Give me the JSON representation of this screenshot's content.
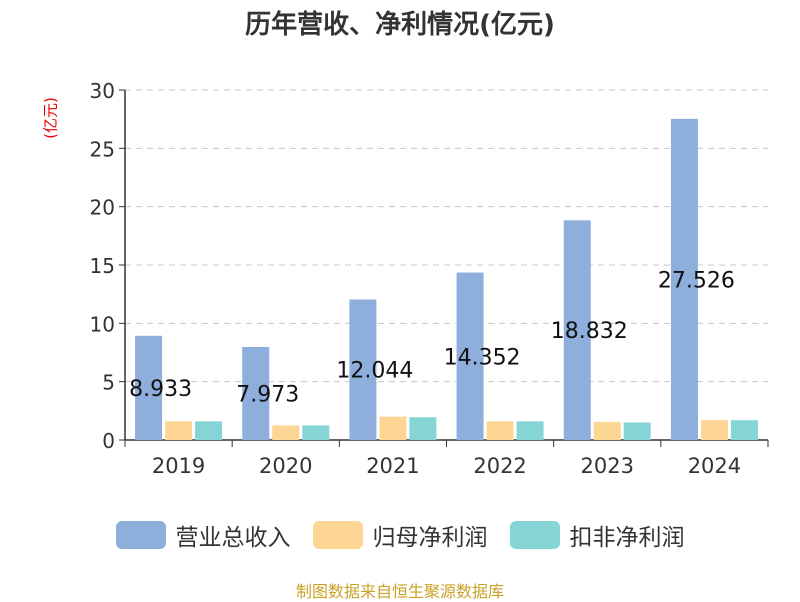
{
  "title": "历年营收、净利情况(亿元)",
  "source": "制图数据来自恒生聚源数据库",
  "chart_data": {
    "type": "bar",
    "title": "历年营收、净利情况(亿元)",
    "ylabel": "(亿元)",
    "xlabel": "",
    "ylim": [
      0,
      30
    ],
    "yticks": [
      0,
      5,
      10,
      15,
      20,
      25,
      30
    ],
    "grid": true,
    "legend_position": "bottom",
    "categories": [
      "2019",
      "2020",
      "2021",
      "2022",
      "2023",
      "2024"
    ],
    "series": [
      {
        "name": "营业总收入",
        "color": "#8eaedc",
        "values": [
          8.933,
          7.973,
          12.044,
          14.352,
          18.832,
          27.526
        ],
        "labels": [
          "8.933",
          "7.973",
          "12.044",
          "14.352",
          "18.832",
          "27.526"
        ]
      },
      {
        "name": "归母净利润",
        "color": "#fdd694",
        "values": [
          1.6,
          1.25,
          2.0,
          1.6,
          1.55,
          1.7
        ]
      },
      {
        "name": "扣非净利润",
        "color": "#85d5d6",
        "values": [
          1.6,
          1.25,
          1.95,
          1.6,
          1.5,
          1.7
        ]
      }
    ]
  }
}
